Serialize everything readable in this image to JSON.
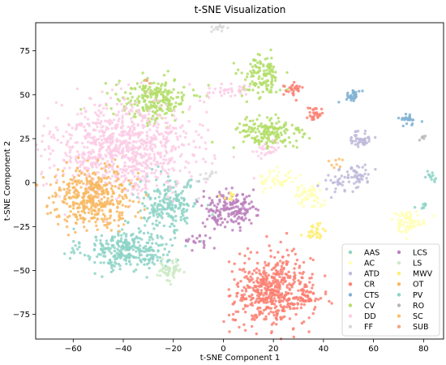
{
  "chart_data": {
    "type": "scatter",
    "title": "t-SNE Visualization",
    "xlabel": "t-SNE Component 1",
    "ylabel": "t-SNE Component 2",
    "xlim": [
      -75,
      88
    ],
    "ylim": [
      -89,
      91
    ],
    "xticks": [
      -60,
      -40,
      -20,
      0,
      20,
      40,
      60,
      80
    ],
    "yticks": [
      -75,
      -50,
      -25,
      0,
      25,
      50,
      75
    ],
    "grid": false,
    "legend_position": "lower-right",
    "legend_columns": 2,
    "series": [
      {
        "name": "AAS",
        "color": "#8dd3c7",
        "clusters": [
          {
            "cx": -38,
            "cy": -38,
            "sx": 9,
            "sy": 6,
            "n": 320
          },
          {
            "cx": -22,
            "cy": -12,
            "sx": 6,
            "sy": 7,
            "n": 200
          },
          {
            "cx": 83,
            "cy": 3,
            "sx": 1.5,
            "sy": 2,
            "n": 12
          },
          {
            "cx": 80,
            "cy": -14,
            "sx": 1.2,
            "sy": 2,
            "n": 8
          }
        ]
      },
      {
        "name": "AC",
        "color": "#ffffb3",
        "clusters": [
          {
            "cx": 74,
            "cy": -22,
            "sx": 3.5,
            "sy": 3,
            "n": 70
          },
          {
            "cx": 34,
            "cy": -8,
            "sx": 3,
            "sy": 3,
            "n": 55
          },
          {
            "cx": 22,
            "cy": 2,
            "sx": 4,
            "sy": 3,
            "n": 45
          },
          {
            "cx": 50,
            "cy": -40,
            "sx": 1.5,
            "sy": 1.2,
            "n": 12
          }
        ]
      },
      {
        "name": "ATD",
        "color": "#bebada",
        "clusters": [
          {
            "cx": 55,
            "cy": 25,
            "sx": 2,
            "sy": 2.5,
            "n": 45
          },
          {
            "cx": 54,
            "cy": 5,
            "sx": 3,
            "sy": 2.5,
            "n": 40
          },
          {
            "cx": 47,
            "cy": 0,
            "sx": 4,
            "sy": 3,
            "n": 35
          }
        ]
      },
      {
        "name": "CR",
        "color": "#fb8072",
        "clusters": [
          {
            "cx": 20,
            "cy": -62,
            "sx": 8,
            "sy": 10,
            "n": 520
          },
          {
            "cx": 28,
            "cy": 53,
            "sx": 2,
            "sy": 2,
            "n": 30
          },
          {
            "cx": 36,
            "cy": 39,
            "sx": 2,
            "sy": 2,
            "n": 28
          },
          {
            "cx": 34,
            "cy": -65,
            "sx": 2,
            "sy": 2,
            "n": 25
          }
        ]
      },
      {
        "name": "CTS",
        "color": "#80b1d3",
        "clusters": [
          {
            "cx": 52,
            "cy": 50,
            "sx": 1.5,
            "sy": 1.5,
            "n": 30
          },
          {
            "cx": 74,
            "cy": 36,
            "sx": 2,
            "sy": 1.5,
            "n": 25
          }
        ]
      },
      {
        "name": "CV",
        "color": "#b3de69",
        "clusters": [
          {
            "cx": -28,
            "cy": 47,
            "sx": 7,
            "sy": 6,
            "n": 240
          },
          {
            "cx": 18,
            "cy": 28,
            "sx": 7,
            "sy": 5,
            "n": 170
          },
          {
            "cx": 15,
            "cy": 60,
            "sx": 4,
            "sy": 6,
            "n": 130
          }
        ]
      },
      {
        "name": "DD",
        "color": "#fccde5",
        "clusters": [
          {
            "cx": -40,
            "cy": 20,
            "sx": 14,
            "sy": 13,
            "n": 900
          },
          {
            "cx": 2,
            "cy": 52,
            "sx": 4,
            "sy": 2,
            "n": 35
          },
          {
            "cx": 16,
            "cy": 18,
            "sx": 3,
            "sy": 2,
            "n": 25
          }
        ]
      },
      {
        "name": "FF",
        "color": "#d9d9d9",
        "clusters": [
          {
            "cx": -2,
            "cy": 88,
            "sx": 1.5,
            "sy": 1.5,
            "n": 14
          },
          {
            "cx": -5,
            "cy": 4,
            "sx": 1.5,
            "sy": 1.5,
            "n": 10
          }
        ]
      },
      {
        "name": "LCS",
        "color": "#bc80bd",
        "clusters": [
          {
            "cx": 2,
            "cy": -15,
            "sx": 5,
            "sy": 5,
            "n": 180
          },
          {
            "cx": -10,
            "cy": -33,
            "sx": 3,
            "sy": 2,
            "n": 20
          }
        ]
      },
      {
        "name": "LS",
        "color": "#ccebc5",
        "clusters": [
          {
            "cx": -21,
            "cy": -50,
            "sx": 2.5,
            "sy": 3,
            "n": 55
          }
        ]
      },
      {
        "name": "MWV",
        "color": "#ffed6f",
        "clusters": [
          {
            "cx": 37,
            "cy": -28,
            "sx": 2,
            "sy": 2,
            "n": 30
          },
          {
            "cx": 2,
            "cy": -8,
            "sx": 1.5,
            "sy": 1.5,
            "n": 10
          }
        ]
      },
      {
        "name": "OT",
        "color": "#f8b862",
        "clusters": [
          {
            "cx": -52,
            "cy": -8,
            "sx": 8,
            "sy": 8,
            "n": 420
          }
        ]
      },
      {
        "name": "PV",
        "color": "#8dd3c7",
        "clusters": [
          {
            "cx": -13,
            "cy": 0,
            "sx": 1.5,
            "sy": 1.5,
            "n": 8
          }
        ]
      },
      {
        "name": "RO",
        "color": "#b6b6b6",
        "clusters": [
          {
            "cx": 80,
            "cy": 26,
            "sx": 1,
            "sy": 1,
            "n": 5
          }
        ]
      },
      {
        "name": "SC",
        "color": "#fdbf6f",
        "clusters": [
          {
            "cx": 45,
            "cy": 10,
            "sx": 2,
            "sy": 2,
            "n": 8
          }
        ]
      },
      {
        "name": "SUB",
        "color": "#f4a582",
        "clusters": [
          {
            "cx": -30,
            "cy": 57,
            "sx": 1,
            "sy": 1,
            "n": 3
          }
        ]
      }
    ]
  }
}
